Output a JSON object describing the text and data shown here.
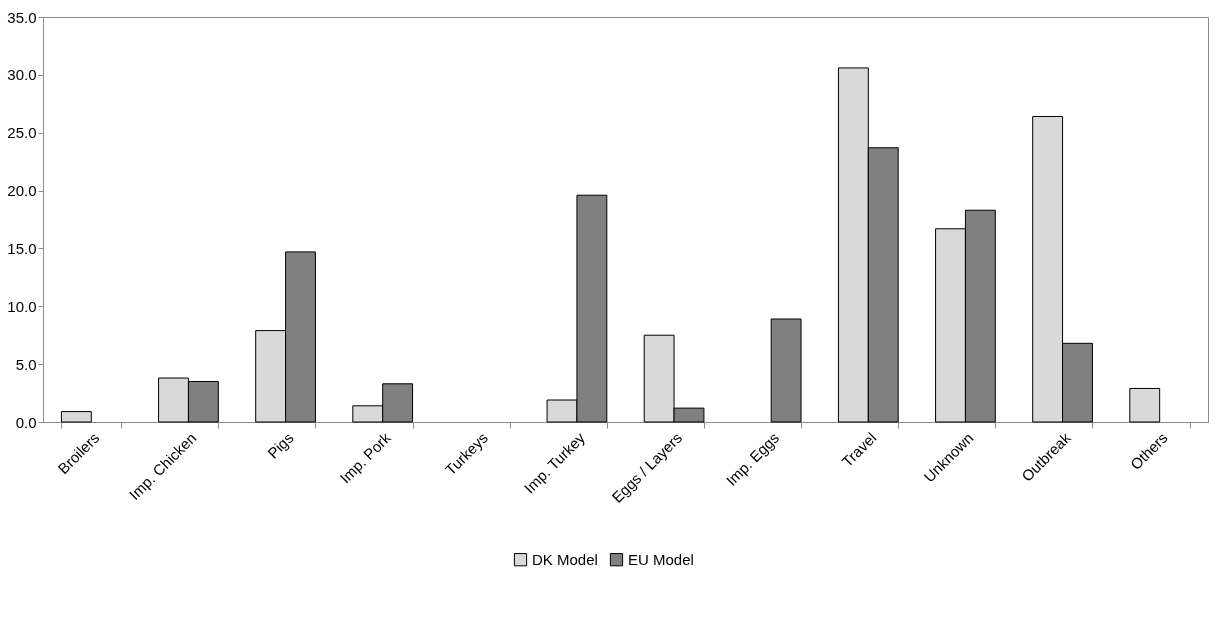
{
  "chart_data": {
    "type": "bar",
    "categories": [
      "Broilers",
      "Imp. Chicken",
      "Pigs",
      "Imp. Pork",
      "Turkeys",
      "Imp. Turkey",
      "Eggs / Layers",
      "Imp. Eggs",
      "Travel",
      "Unknown",
      "Outbreak",
      "Others"
    ],
    "series": [
      {
        "name": "DK Model",
        "color": "#d9d9d9",
        "values": [
          0.9,
          3.8,
          7.9,
          1.4,
          null,
          1.9,
          7.5,
          null,
          30.6,
          16.7,
          26.4,
          2.9
        ]
      },
      {
        "name": "EU Model",
        "color": "#808080",
        "values": [
          null,
          3.5,
          14.7,
          3.3,
          null,
          19.6,
          1.2,
          8.9,
          23.7,
          18.3,
          6.8,
          null
        ]
      }
    ],
    "ylim": [
      0,
      35
    ],
    "yticks": [
      {
        "value": 0,
        "label": "0.0"
      },
      {
        "value": 5,
        "label": "5.0"
      },
      {
        "value": 10,
        "label": "10.0"
      },
      {
        "value": 15,
        "label": "15.0"
      },
      {
        "value": 20,
        "label": "20.0"
      },
      {
        "value": 25,
        "label": "25.0"
      },
      {
        "value": 30,
        "label": "30.0"
      },
      {
        "value": 35,
        "label": "35.0"
      }
    ],
    "grid": false,
    "legend": "bottom"
  }
}
